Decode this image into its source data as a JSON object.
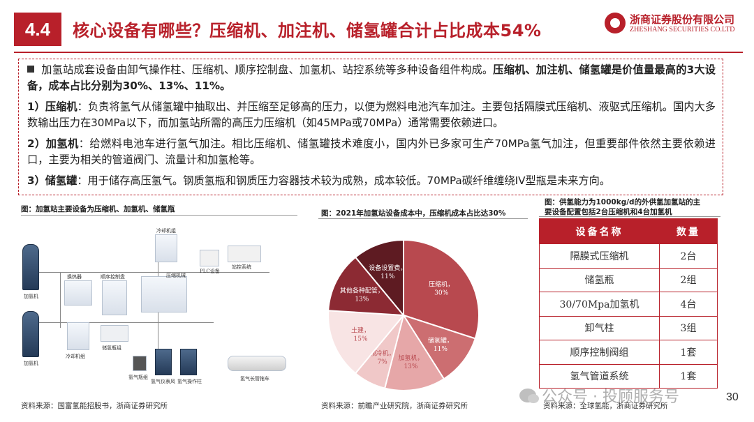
{
  "header": {
    "section_no": "4.4",
    "title": "核心设备有哪些？压缩机、加注机、储氢罐合计占比成本54%",
    "logo_cn": "浙商证券股份有限公司",
    "logo_en": "ZHESHANG SECURITIES CO.LTD"
  },
  "summary": {
    "intro_normal": "加氢站成套设备由卸气操作柱、压缩机、顺序控制盘、加氢机、站控系统等多种设备组件构成。",
    "intro_bold": "压缩机、加注机、储氢罐是价值量最高的3大设备，成本占比分别为30%、13%、11%。",
    "p1_head": "1）压缩机",
    "p1_body": "：负责将氢气从储氢罐中抽取出、并压缩至足够高的压力，以便为燃料电池汽车加注。主要包括隔膜式压缩机、液驱式压缩机。国内大多数输出压力在30MPa以下，而加氢站所需的高压力压缩机（如45MPa或70MPa）通常需要依赖进口。",
    "p2_head": "2）加氢机",
    "p2_body": "：给燃料电池车进行氢气加注。相比压缩机、储氢罐技术难度小，国内外已多家可生产70MPa氢气加注，但重要部件依然主要依赖进口，主要为相关的管道阀门、流量计和加氢枪等。",
    "p3_head": "3）储氢罐",
    "p3_body": "：用于储存高压氢气。钢质氢瓶和钢质压力容器技术较为成熟，成本较低。70MPa碳纤维缠绕IV型瓶是未来方向。"
  },
  "figure_left": {
    "caption": "图：加氢站主要设备为压缩机、加氢机、储氢瓶",
    "source": "资料来源：国富氢能招股书，浙商证券研究所",
    "labels": {
      "dispenser_top": "加氢机",
      "dispenser_bottom": "加氢机",
      "heat_exchanger": "换热器",
      "control_panel": "顺序控制盘",
      "chiller_top": "冷却机组",
      "compressor": "压缩机械",
      "plc": "PLC设备",
      "station_control": "站控系统",
      "chiller_bottom": "冷却机组",
      "storage": "储氢瓶组",
      "h2_bottle": "氢气瓶组",
      "h2_cabinet": "氢气仪表风",
      "unloading": "氢气操作柱",
      "tube_trailer": "氢气长管拖车"
    }
  },
  "figure_mid": {
    "caption": "图：2021年加氢站设备成本中，压缩机成本占比达30%",
    "source": "资料来源：前瞻产业研究院，浙商证券研究所"
  },
  "chart_data": {
    "type": "pie",
    "title": "",
    "slices": [
      {
        "label": "压缩机",
        "value": 30,
        "display": "30%",
        "color": "#b8494f"
      },
      {
        "label": "储氢罐",
        "value": 11,
        "display": "11%",
        "color": "#cc6e71"
      },
      {
        "label": "加氢机",
        "value": 13,
        "display": "13%",
        "color": "#e6a7a8"
      },
      {
        "label": "预冷机",
        "value": 7,
        "display": "7%",
        "color": "#f0c8c8"
      },
      {
        "label": "土建",
        "value": 15,
        "display": "15%",
        "color": "#f8e4e4"
      },
      {
        "label": "其他各种配管",
        "value": 13,
        "display": "13%",
        "color": "#8c2a33"
      },
      {
        "label": "设备设置费",
        "value": 11,
        "display": "11%",
        "color": "#5e1b22"
      }
    ]
  },
  "figure_right": {
    "caption_line1": "图：供氢能力为1000kg/d的外供氢加氢站的主",
    "caption_line2": "要设备配置包括2台压缩机和4台加氢机",
    "source": "资料来源：全球氢能，浙商证券研究所",
    "headers": [
      "设备名称",
      "数量"
    ],
    "rows": [
      {
        "name": "隔膜式压缩机",
        "qty": "2台"
      },
      {
        "name": "储氢瓶",
        "qty": "2组"
      },
      {
        "name": "30/70Mpa加氢机",
        "qty": "4台"
      },
      {
        "name": "卸气柱",
        "qty": "3组"
      },
      {
        "name": "顺序控制阀组",
        "qty": "1套"
      },
      {
        "name": "氢气管道系统",
        "qty": "1套"
      }
    ]
  },
  "watermark": "公众号 · 投顾服务号",
  "page_number": "30"
}
